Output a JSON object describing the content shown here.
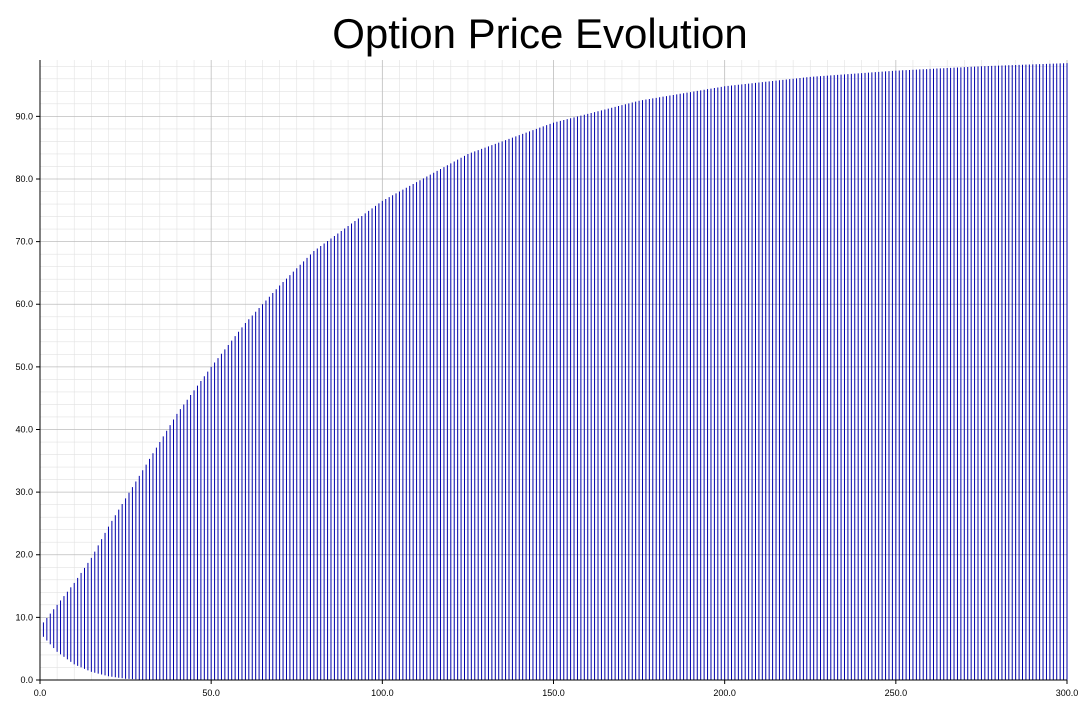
{
  "chart_data": {
    "type": "line",
    "title": "Option Price Evolution",
    "xlabel": "",
    "ylabel": "",
    "xlim": [
      0,
      300
    ],
    "ylim": [
      0,
      99
    ],
    "grid": true,
    "x_ticks": [
      "0.0",
      "50.0",
      "100.0",
      "150.0",
      "200.0",
      "250.0",
      "300.0"
    ],
    "y_ticks": [
      "0.0",
      "10.0",
      "20.0",
      "30.0",
      "40.0",
      "50.0",
      "60.0",
      "70.0",
      "80.0",
      "90.0"
    ],
    "x_step": 1,
    "series": [
      {
        "color": "#0000aa",
        "keypoints": [
          {
            "x": 0,
            "lower": 7.5,
            "upper": 8.5
          },
          {
            "x": 5,
            "lower": 4.5,
            "upper": 12
          },
          {
            "x": 10,
            "lower": 2.5,
            "upper": 15.5
          },
          {
            "x": 15,
            "lower": 1.3,
            "upper": 19.5
          },
          {
            "x": 20,
            "lower": 0.6,
            "upper": 24.5
          },
          {
            "x": 25,
            "lower": 0.2,
            "upper": 29
          },
          {
            "x": 30,
            "lower": 0.05,
            "upper": 33.5
          },
          {
            "x": 40,
            "lower": 0,
            "upper": 42.5
          },
          {
            "x": 50,
            "lower": 0,
            "upper": 50
          },
          {
            "x": 60,
            "lower": 0,
            "upper": 57
          },
          {
            "x": 70,
            "lower": 0,
            "upper": 63
          },
          {
            "x": 80,
            "lower": 0,
            "upper": 68.5
          },
          {
            "x": 90,
            "lower": 0,
            "upper": 72.5
          },
          {
            "x": 100,
            "lower": 0,
            "upper": 76.5
          },
          {
            "x": 125,
            "lower": 0,
            "upper": 84
          },
          {
            "x": 150,
            "lower": 0,
            "upper": 89
          },
          {
            "x": 175,
            "lower": 0,
            "upper": 92.5
          },
          {
            "x": 200,
            "lower": 0,
            "upper": 94.8
          },
          {
            "x": 225,
            "lower": 0,
            "upper": 96.3
          },
          {
            "x": 250,
            "lower": 0,
            "upper": 97.3
          },
          {
            "x": 275,
            "lower": 0,
            "upper": 98
          },
          {
            "x": 300,
            "lower": 0,
            "upper": 98.5
          }
        ]
      }
    ]
  }
}
